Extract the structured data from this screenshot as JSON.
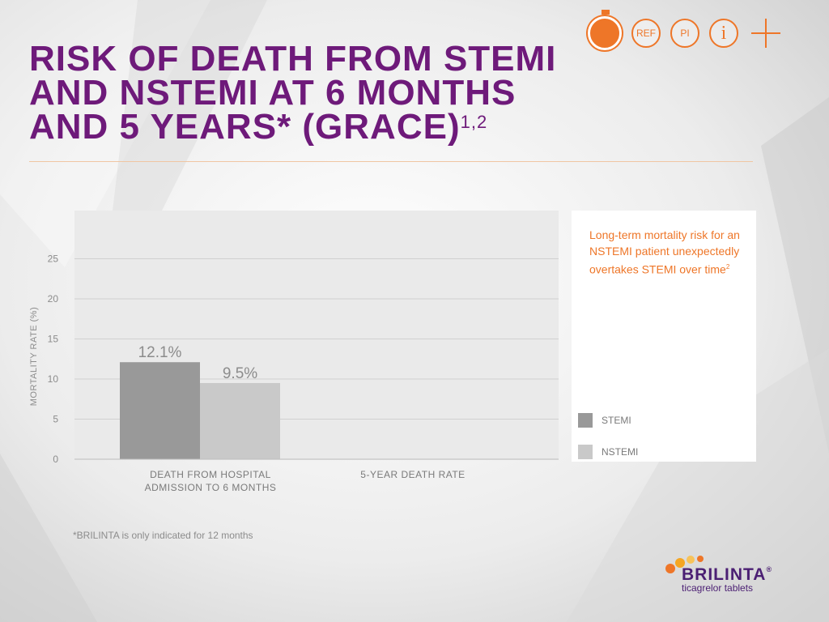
{
  "header": {
    "title_text": "RISK OF DEATH FROM STEMI AND NSTEMI AT 6 MONTHS AND 5 YEARS* (GRACE)",
    "title_superscript": "1,2",
    "toolbar": {
      "timer_icon": "stopwatch-icon",
      "ref_label": "REF",
      "pi_label": "PI",
      "info_label": "i",
      "plus_icon": "plus-icon"
    }
  },
  "chart_data": {
    "type": "bar",
    "categories": [
      "DEATH FROM HOSPITAL ADMISSION TO 6 MONTHS",
      "5-YEAR DEATH RATE"
    ],
    "category_lines": [
      [
        "DEATH FROM HOSPITAL",
        "ADMISSION TO 6 MONTHS"
      ],
      [
        "5-YEAR DEATH RATE"
      ]
    ],
    "series": [
      {
        "name": "STEMI",
        "values": [
          12.1,
          null
        ],
        "color": "#999999"
      },
      {
        "name": "NSTEMI",
        "values": [
          9.5,
          null
        ],
        "color": "#c9c9c9"
      }
    ],
    "data_labels": [
      "12.1%",
      "9.5%"
    ],
    "ylabel": "MORTALITY RATE (%)",
    "ylim": [
      0,
      30
    ],
    "yticks": [
      0,
      5,
      10,
      15,
      20,
      25
    ],
    "grid": true,
    "legend_position": "right"
  },
  "callout": {
    "text": "Long-term mortality risk for an NSTEMI patient unexpectedly overtakes STEMI over time",
    "superscript": "2"
  },
  "footnote": "*BRILINTA is only indicated for 12 months",
  "brand": {
    "name": "BRILINTA",
    "trademark": "®",
    "tagline": "ticagrelor tablets",
    "colors": {
      "orange": "#ee7628",
      "purple": "#6e1a7a"
    }
  }
}
